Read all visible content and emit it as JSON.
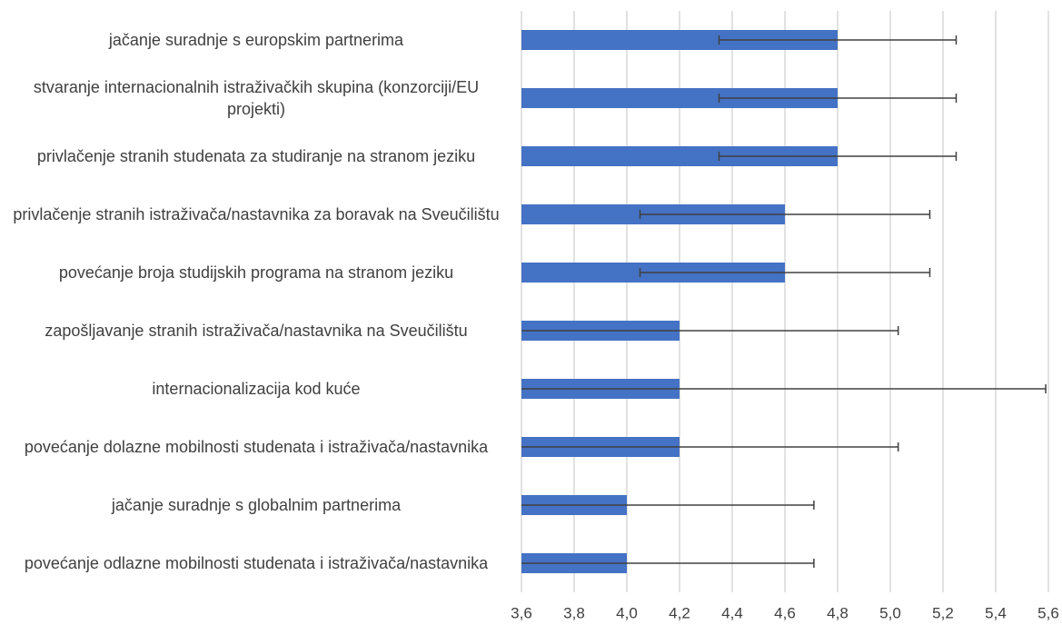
{
  "chart_data": {
    "type": "hbar",
    "categories": [
      "jačanje suradnje s europskim partnerima",
      "stvaranje internacionalnih istraživačkih skupina (konzorciji/EU projekti)",
      "privlačenje stranih studenata za studiranje na stranom jeziku",
      "privlačenje stranih istraživača/nastavnika za boravak na Sveučilištu",
      "povećanje broja studijskih programa na stranom jeziku",
      "zapošljavanje stranih istraživača/nastavnika na Sveučilištu",
      "internacionalizacija kod kuće",
      "povećanje dolazne mobilnosti studenata i istraživača/nastavnika",
      "jačanje suradnje s globalnim partnerima",
      "povećanje odlazne mobilnosti studenata i istraživača/nastavnika"
    ],
    "values": [
      4.8,
      4.8,
      4.8,
      4.6,
      4.6,
      4.2,
      4.2,
      4.2,
      4.0,
      4.0
    ],
    "errors": [
      0.45,
      0.45,
      0.45,
      0.55,
      0.55,
      0.83,
      1.39,
      0.83,
      0.71,
      0.71
    ],
    "color": "#4472c4",
    "xlim": [
      3.6,
      5.6
    ],
    "xticks": [
      {
        "value": 3.6,
        "label": "3,6"
      },
      {
        "value": 3.8,
        "label": "3,8"
      },
      {
        "value": 4.0,
        "label": "4,0"
      },
      {
        "value": 4.2,
        "label": "4,2"
      },
      {
        "value": 4.4,
        "label": "4,4"
      },
      {
        "value": 4.6,
        "label": "4,6"
      },
      {
        "value": 4.8,
        "label": "4,8"
      },
      {
        "value": 5.0,
        "label": "5,0"
      },
      {
        "value": 5.2,
        "label": "5,2"
      },
      {
        "value": 5.4,
        "label": "5,4"
      },
      {
        "value": 5.6,
        "label": "5,6"
      }
    ],
    "grid": true
  }
}
